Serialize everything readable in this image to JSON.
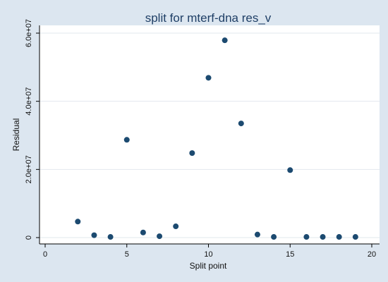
{
  "chart_data": {
    "type": "scatter",
    "title": "split for mterf-dna res_v",
    "xlabel": "Split point",
    "ylabel": "Residual",
    "xlim": [
      0,
      20
    ],
    "ylim": [
      0,
      60000000
    ],
    "x_ticks": [
      0,
      5,
      10,
      15,
      20
    ],
    "y_ticks": [
      0,
      20000000,
      40000000,
      60000000
    ],
    "x_tick_labels": [
      "0",
      "5",
      "10",
      "15",
      "20"
    ],
    "y_tick_labels": [
      "0",
      "2.0e+07",
      "4.0e+07",
      "6.0e+07"
    ],
    "grid": true,
    "point_color": "#1c4a70",
    "points": [
      {
        "x": 2,
        "y": 4700000
      },
      {
        "x": 3,
        "y": 700000
      },
      {
        "x": 4,
        "y": 200000
      },
      {
        "x": 5,
        "y": 28700000
      },
      {
        "x": 6,
        "y": 1500000
      },
      {
        "x": 7,
        "y": 400000
      },
      {
        "x": 8,
        "y": 3300000
      },
      {
        "x": 9,
        "y": 24800000
      },
      {
        "x": 10,
        "y": 46900000
      },
      {
        "x": 11,
        "y": 57900000
      },
      {
        "x": 12,
        "y": 33500000
      },
      {
        "x": 13,
        "y": 900000
      },
      {
        "x": 14,
        "y": 200000
      },
      {
        "x": 15,
        "y": 19800000
      },
      {
        "x": 16,
        "y": 200000
      },
      {
        "x": 17,
        "y": 200000
      },
      {
        "x": 18,
        "y": 200000
      },
      {
        "x": 19,
        "y": 200000
      }
    ]
  }
}
